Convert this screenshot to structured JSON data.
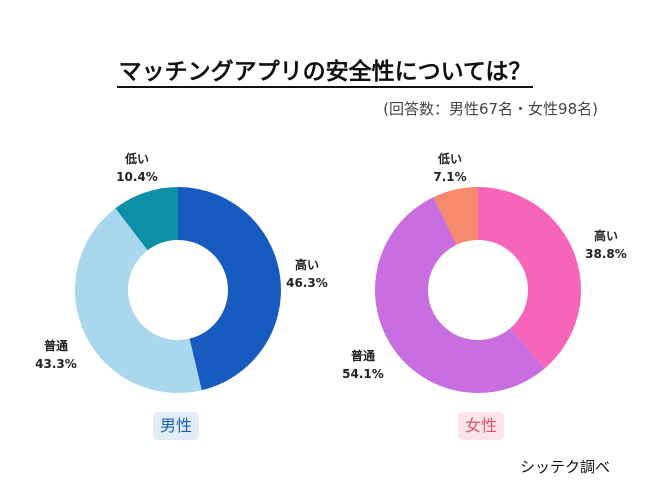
{
  "title": "マッチングアプリの安全性については？",
  "subtitle": "(回答数：男性67名・女性98名)",
  "source": "シッテク調べ",
  "chart_data": [
    {
      "type": "pie",
      "group_label": "男性",
      "categories": [
        "高い",
        "普通",
        "低い"
      ],
      "values": [
        46.3,
        43.3,
        10.4
      ],
      "value_labels": [
        "46.3%",
        "43.3%",
        "10.4%"
      ],
      "colors": [
        "#175bc1",
        "#a8d7ee",
        "#0e8fa8"
      ]
    },
    {
      "type": "pie",
      "group_label": "女性",
      "categories": [
        "高い",
        "普通",
        "低い"
      ],
      "values": [
        38.8,
        54.1,
        7.1
      ],
      "value_labels": [
        "38.8%",
        "54.1%",
        "7.1%"
      ],
      "colors": [
        "#f765bb",
        "#c96ee0",
        "#f7896d"
      ]
    }
  ]
}
